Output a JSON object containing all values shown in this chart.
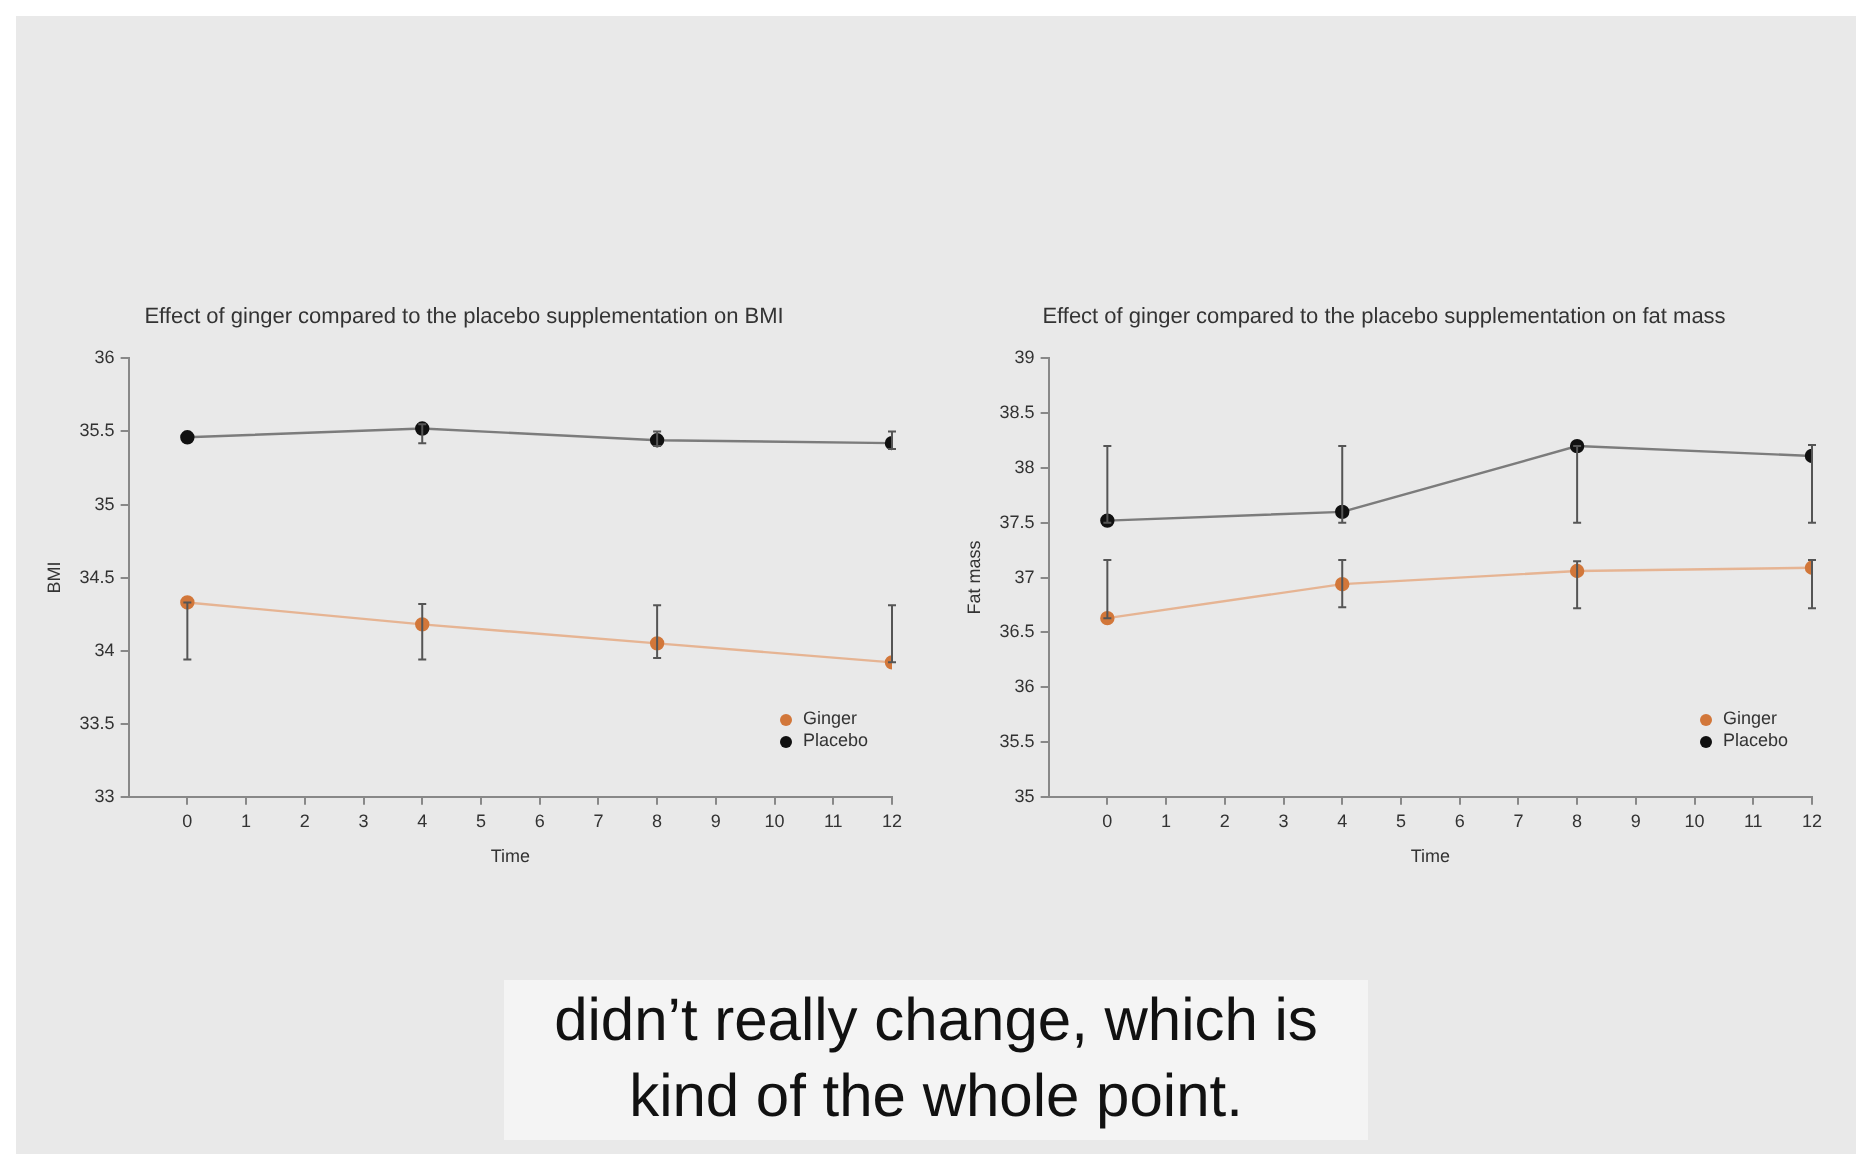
{
  "chart_data": [
    {
      "type": "line",
      "title": "Effect of ginger compared to the placebo supplementation on BMI",
      "xlabel": "Time",
      "ylabel": "BMI",
      "x": [
        0,
        4,
        8,
        12
      ],
      "xlim": [
        -1,
        12
      ],
      "xticks": [
        0,
        1,
        2,
        3,
        4,
        5,
        6,
        7,
        8,
        9,
        10,
        11,
        12
      ],
      "ylim": [
        33,
        36
      ],
      "yticks": [
        33,
        33.5,
        34,
        34.5,
        35,
        35.5,
        36
      ],
      "grid": false,
      "legend": "bottom right",
      "marker": "circle",
      "series": [
        {
          "name": "Ginger",
          "color": "#d2773a",
          "values": [
            34.33,
            34.18,
            34.05,
            33.92
          ],
          "errors": [
            [
              33.94,
              34.33
            ],
            [
              33.94,
              34.32
            ],
            [
              33.95,
              34.31
            ],
            [
              33.92,
              34.31
            ]
          ]
        },
        {
          "name": "Placebo",
          "color": "#111111",
          "values": [
            35.46,
            35.52,
            35.44,
            35.42
          ],
          "errors": [
            null,
            [
              35.42,
              35.55
            ],
            [
              35.4,
              35.5
            ],
            [
              35.38,
              35.5
            ]
          ]
        }
      ]
    },
    {
      "type": "line",
      "title": "Effect of ginger compared to the placebo supplementation on fat mass",
      "xlabel": "Time",
      "ylabel": "Fat mass",
      "x": [
        0,
        4,
        8,
        12
      ],
      "xlim": [
        -1,
        12
      ],
      "xticks": [
        0,
        1,
        2,
        3,
        4,
        5,
        6,
        7,
        8,
        9,
        10,
        11,
        12
      ],
      "ylim": [
        35,
        39
      ],
      "yticks": [
        35,
        35.5,
        36,
        36.5,
        37,
        37.5,
        38,
        38.5,
        39
      ],
      "grid": false,
      "legend": "bottom right",
      "marker": "circle",
      "annotations": [
        "didn’t really change, which is kind of the whole point."
      ],
      "series": [
        {
          "name": "Ginger",
          "color": "#d2773a",
          "values": [
            36.63,
            36.94,
            37.06,
            37.09
          ],
          "errors": [
            [
              36.63,
              37.16
            ],
            [
              36.73,
              37.16
            ],
            [
              36.72,
              37.15
            ],
            [
              36.72,
              37.16
            ]
          ]
        },
        {
          "name": "Placebo",
          "color": "#111111",
          "values": [
            37.52,
            37.6,
            38.2,
            38.11
          ],
          "errors": [
            [
              37.5,
              38.2
            ],
            [
              37.5,
              38.2
            ],
            [
              37.5,
              38.2
            ],
            [
              37.5,
              38.21
            ]
          ]
        }
      ]
    }
  ]
}
